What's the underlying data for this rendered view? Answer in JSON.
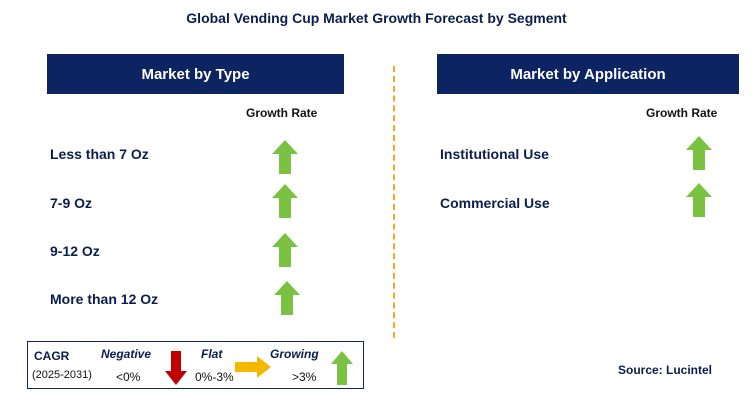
{
  "title": "Global Vending Cup Market Growth Forecast by Segment",
  "left_panel": {
    "header": "Market by Type",
    "column_label": "Growth Rate",
    "rows": [
      {
        "label": "Less than 7 Oz",
        "trend": "growing"
      },
      {
        "label": "7-9 Oz",
        "trend": "growing"
      },
      {
        "label": "9-12 Oz",
        "trend": "growing"
      },
      {
        "label": "More than 12 Oz",
        "trend": "growing"
      }
    ]
  },
  "right_panel": {
    "header": "Market by Application",
    "column_label": "Growth Rate",
    "rows": [
      {
        "label": "Institutional Use",
        "trend": "growing"
      },
      {
        "label": "Commercial Use",
        "trend": "growing"
      }
    ]
  },
  "legend": {
    "cagr_label": "CAGR",
    "period": "(2025-2031)",
    "negative_label": "Negative",
    "negative_range": "<0%",
    "flat_label": "Flat",
    "flat_range": "0%-3%",
    "growing_label": "Growing",
    "growing_range": ">3%"
  },
  "source": "Source: Lucintel",
  "colors": {
    "header_bg": "#0d2463",
    "growing_arrow": "#7cc242",
    "negative_arrow": "#c00000",
    "flat_arrow": "#f5b800",
    "divider": "#f5a623"
  },
  "icons": {
    "growing": "up-arrow-icon",
    "negative": "down-arrow-icon",
    "flat": "right-arrow-icon"
  }
}
